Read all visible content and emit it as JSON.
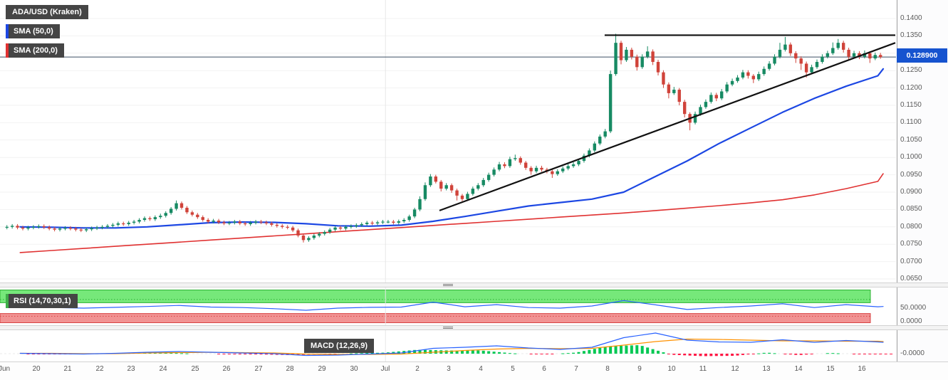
{
  "colors": {
    "up_candle": "#178a63",
    "down_candle": "#d0433a",
    "sma50": "#1c47e3",
    "sma200": "#e03131",
    "trendline": "#111111",
    "last_price_line": "#3c4f63",
    "rsi_line": "#2962ff",
    "rsi_marker": "#3fae49",
    "rsi_overbought_fill": "#76e87a",
    "rsi_overbought_edge": "#2db234",
    "rsi_oversold_fill": "#f19393",
    "rsi_oversold_edge": "#d84343",
    "macd_line": "#2962ff",
    "macd_signal": "#ff9100",
    "hist_up": "#00c853",
    "hist_down": "#ff1744",
    "badge_bg": "#1653cf"
  },
  "chart_data": {
    "type": "candlestick",
    "symbol_label": "ADA/USD (Kraken)",
    "last_price": 0.1289,
    "last_price_label": "0.128900",
    "ylim": [
      0.065,
      0.14
    ],
    "price_tick_labels": [
      "0.1400",
      "0.1350",
      "0.1300",
      "0.1250",
      "0.1200",
      "0.1150",
      "0.1100",
      "0.1050",
      "0.1000",
      "0.0950",
      "0.0900",
      "0.0850",
      "0.0800",
      "0.0750",
      "0.0700",
      "0.0650"
    ],
    "x_tick_labels": [
      "Jun",
      "20",
      "21",
      "22",
      "23",
      "24",
      "25",
      "26",
      "27",
      "28",
      "29",
      "30",
      "Jul",
      "2",
      "3",
      "4",
      "5",
      "6",
      "7",
      "8",
      "9",
      "10",
      "11",
      "12",
      "13",
      "14",
      "15",
      "16"
    ],
    "candles_per_day": 6,
    "candles_ohlc": [
      [
        0.0798,
        0.0805,
        0.0793,
        0.08
      ],
      [
        0.08,
        0.0808,
        0.0795,
        0.0803
      ],
      [
        0.0803,
        0.0808,
        0.0793,
        0.0798
      ],
      [
        0.0798,
        0.0803,
        0.079,
        0.0795
      ],
      [
        0.0795,
        0.0803,
        0.079,
        0.0798
      ],
      [
        0.0798,
        0.0805,
        0.0793,
        0.08
      ],
      [
        0.08,
        0.0807,
        0.0795,
        0.0802
      ],
      [
        0.0802,
        0.0807,
        0.0794,
        0.0799
      ],
      [
        0.0799,
        0.0804,
        0.079,
        0.0795
      ],
      [
        0.0795,
        0.08,
        0.0787,
        0.0792
      ],
      [
        0.0792,
        0.08,
        0.0787,
        0.0795
      ],
      [
        0.0795,
        0.0802,
        0.079,
        0.0797
      ],
      [
        0.0797,
        0.0802,
        0.079,
        0.0795
      ],
      [
        0.0795,
        0.08,
        0.0787,
        0.0792
      ],
      [
        0.0792,
        0.0797,
        0.0785,
        0.079
      ],
      [
        0.079,
        0.0798,
        0.0785,
        0.0793
      ],
      [
        0.0793,
        0.0801,
        0.0788,
        0.0796
      ],
      [
        0.0796,
        0.0803,
        0.0791,
        0.0798
      ],
      [
        0.0798,
        0.0805,
        0.0793,
        0.08
      ],
      [
        0.08,
        0.0808,
        0.0795,
        0.0803
      ],
      [
        0.0803,
        0.0811,
        0.0798,
        0.0806
      ],
      [
        0.0806,
        0.0815,
        0.0801,
        0.081
      ],
      [
        0.081,
        0.0815,
        0.0803,
        0.0808
      ],
      [
        0.0808,
        0.0817,
        0.0803,
        0.0812
      ],
      [
        0.0812,
        0.082,
        0.0807,
        0.0815
      ],
      [
        0.0815,
        0.0825,
        0.081,
        0.082
      ],
      [
        0.082,
        0.083,
        0.0815,
        0.0825
      ],
      [
        0.0825,
        0.083,
        0.0817,
        0.0822
      ],
      [
        0.0822,
        0.0833,
        0.0817,
        0.0828
      ],
      [
        0.0828,
        0.0838,
        0.0823,
        0.0832
      ],
      [
        0.0832,
        0.0845,
        0.0827,
        0.084
      ],
      [
        0.084,
        0.0857,
        0.0835,
        0.0852
      ],
      [
        0.0852,
        0.0876,
        0.0847,
        0.0868
      ],
      [
        0.0868,
        0.0873,
        0.085,
        0.0855
      ],
      [
        0.0855,
        0.086,
        0.0837,
        0.0842
      ],
      [
        0.0842,
        0.0847,
        0.083,
        0.0835
      ],
      [
        0.0835,
        0.084,
        0.0823,
        0.0828
      ],
      [
        0.0828,
        0.0833,
        0.0815,
        0.082
      ],
      [
        0.082,
        0.0825,
        0.081,
        0.0815
      ],
      [
        0.0815,
        0.0823,
        0.081,
        0.0818
      ],
      [
        0.0818,
        0.0823,
        0.0808,
        0.0813
      ],
      [
        0.0813,
        0.0818,
        0.0805,
        0.081
      ],
      [
        0.081,
        0.0817,
        0.0805,
        0.0812
      ],
      [
        0.0812,
        0.082,
        0.0807,
        0.0815
      ],
      [
        0.0815,
        0.082,
        0.0805,
        0.081
      ],
      [
        0.081,
        0.0815,
        0.0803,
        0.0808
      ],
      [
        0.0808,
        0.0817,
        0.0803,
        0.0812
      ],
      [
        0.0812,
        0.082,
        0.0807,
        0.0815
      ],
      [
        0.0815,
        0.082,
        0.0808,
        0.0813
      ],
      [
        0.0813,
        0.0818,
        0.0805,
        0.081
      ],
      [
        0.081,
        0.0815,
        0.0801,
        0.0806
      ],
      [
        0.0806,
        0.0811,
        0.0798,
        0.0803
      ],
      [
        0.0803,
        0.0808,
        0.0795,
        0.08
      ],
      [
        0.08,
        0.0805,
        0.0793,
        0.0798
      ],
      [
        0.0798,
        0.0803,
        0.0785,
        0.079
      ],
      [
        0.079,
        0.0795,
        0.077,
        0.0775
      ],
      [
        0.0775,
        0.078,
        0.0755,
        0.0762
      ],
      [
        0.0762,
        0.0773,
        0.0757,
        0.0768
      ],
      [
        0.0768,
        0.078,
        0.0763,
        0.0775
      ],
      [
        0.0775,
        0.0785,
        0.077,
        0.078
      ],
      [
        0.078,
        0.079,
        0.0775,
        0.0785
      ],
      [
        0.0785,
        0.0797,
        0.078,
        0.0792
      ],
      [
        0.0792,
        0.0803,
        0.0787,
        0.0798
      ],
      [
        0.0798,
        0.0803,
        0.079,
        0.0795
      ],
      [
        0.0795,
        0.0805,
        0.079,
        0.08
      ],
      [
        0.08,
        0.0807,
        0.0795,
        0.0802
      ],
      [
        0.0802,
        0.081,
        0.0797,
        0.0805
      ],
      [
        0.0805,
        0.0813,
        0.08,
        0.0808
      ],
      [
        0.0808,
        0.0817,
        0.0803,
        0.0812
      ],
      [
        0.0812,
        0.0817,
        0.0805,
        0.081
      ],
      [
        0.081,
        0.0818,
        0.0805,
        0.0813
      ],
      [
        0.0813,
        0.082,
        0.0808,
        0.0815
      ],
      [
        0.0815,
        0.082,
        0.081,
        0.0815
      ],
      [
        0.0815,
        0.082,
        0.0807,
        0.0812
      ],
      [
        0.0812,
        0.0821,
        0.0807,
        0.0816
      ],
      [
        0.0816,
        0.0825,
        0.0811,
        0.082
      ],
      [
        0.082,
        0.0835,
        0.0815,
        0.083
      ],
      [
        0.083,
        0.0855,
        0.0825,
        0.085
      ],
      [
        0.085,
        0.0888,
        0.0845,
        0.088
      ],
      [
        0.088,
        0.0928,
        0.0875,
        0.092
      ],
      [
        0.092,
        0.0952,
        0.0915,
        0.0945
      ],
      [
        0.0945,
        0.095,
        0.0925,
        0.093
      ],
      [
        0.093,
        0.0935,
        0.0902,
        0.091
      ],
      [
        0.091,
        0.0926,
        0.0905,
        0.092
      ],
      [
        0.092,
        0.0925,
        0.0898,
        0.0905
      ],
      [
        0.0905,
        0.091,
        0.0876,
        0.089
      ],
      [
        0.089,
        0.0895,
        0.0874,
        0.088
      ],
      [
        0.088,
        0.0901,
        0.0875,
        0.0895
      ],
      [
        0.0895,
        0.0916,
        0.089,
        0.091
      ],
      [
        0.091,
        0.0926,
        0.0905,
        0.092
      ],
      [
        0.092,
        0.0941,
        0.0915,
        0.0935
      ],
      [
        0.0935,
        0.0956,
        0.093,
        0.095
      ],
      [
        0.095,
        0.0971,
        0.0945,
        0.0965
      ],
      [
        0.0965,
        0.0987,
        0.096,
        0.098
      ],
      [
        0.098,
        0.0986,
        0.0969,
        0.0975
      ],
      [
        0.0975,
        0.1002,
        0.097,
        0.0995
      ],
      [
        0.0995,
        0.1008,
        0.099,
        0.0998
      ],
      [
        0.0998,
        0.1003,
        0.0979,
        0.0985
      ],
      [
        0.0985,
        0.099,
        0.0964,
        0.097
      ],
      [
        0.097,
        0.0975,
        0.095,
        0.096
      ],
      [
        0.096,
        0.0976,
        0.0955,
        0.097
      ],
      [
        0.097,
        0.0976,
        0.0959,
        0.0965
      ],
      [
        0.0965,
        0.097,
        0.0954,
        0.096
      ],
      [
        0.096,
        0.0965,
        0.0941,
        0.0952
      ],
      [
        0.0952,
        0.0966,
        0.0947,
        0.096
      ],
      [
        0.096,
        0.0974,
        0.0955,
        0.0968
      ],
      [
        0.0968,
        0.0981,
        0.0963,
        0.0975
      ],
      [
        0.0975,
        0.0986,
        0.097,
        0.098
      ],
      [
        0.098,
        0.0996,
        0.0975,
        0.099
      ],
      [
        0.099,
        0.1011,
        0.0985,
        0.1005
      ],
      [
        0.1005,
        0.1026,
        0.1,
        0.102
      ],
      [
        0.102,
        0.1046,
        0.1015,
        0.104
      ],
      [
        0.104,
        0.1066,
        0.1035,
        0.106
      ],
      [
        0.106,
        0.1082,
        0.1055,
        0.1075
      ],
      [
        0.1075,
        0.125,
        0.107,
        0.124
      ],
      [
        0.124,
        0.1356,
        0.1235,
        0.133
      ],
      [
        0.133,
        0.1336,
        0.1268,
        0.128
      ],
      [
        0.128,
        0.1318,
        0.1275,
        0.131
      ],
      [
        0.131,
        0.1316,
        0.1282,
        0.129
      ],
      [
        0.129,
        0.1296,
        0.125,
        0.126
      ],
      [
        0.126,
        0.1297,
        0.1255,
        0.129
      ],
      [
        0.129,
        0.132,
        0.1285,
        0.1305
      ],
      [
        0.1305,
        0.1311,
        0.1266,
        0.1275
      ],
      [
        0.1275,
        0.1281,
        0.1236,
        0.1245
      ],
      [
        0.1245,
        0.1251,
        0.12,
        0.121
      ],
      [
        0.121,
        0.1216,
        0.117,
        0.1185
      ],
      [
        0.1185,
        0.1203,
        0.118,
        0.1195
      ],
      [
        0.1195,
        0.12,
        0.115,
        0.116
      ],
      [
        0.116,
        0.1166,
        0.1115,
        0.1125
      ],
      [
        0.1125,
        0.113,
        0.1078,
        0.11
      ],
      [
        0.11,
        0.1132,
        0.1095,
        0.1125
      ],
      [
        0.1125,
        0.1152,
        0.112,
        0.1145
      ],
      [
        0.1145,
        0.1167,
        0.114,
        0.116
      ],
      [
        0.116,
        0.1187,
        0.1155,
        0.118
      ],
      [
        0.118,
        0.1186,
        0.1162,
        0.117
      ],
      [
        0.117,
        0.1197,
        0.1165,
        0.119
      ],
      [
        0.119,
        0.1217,
        0.1185,
        0.121
      ],
      [
        0.121,
        0.1227,
        0.1205,
        0.122
      ],
      [
        0.122,
        0.1237,
        0.1215,
        0.123
      ],
      [
        0.123,
        0.1252,
        0.1225,
        0.1245
      ],
      [
        0.1245,
        0.1251,
        0.1227,
        0.1235
      ],
      [
        0.1235,
        0.124,
        0.1214,
        0.1225
      ],
      [
        0.1225,
        0.1247,
        0.122,
        0.124
      ],
      [
        0.124,
        0.1262,
        0.1235,
        0.1255
      ],
      [
        0.1255,
        0.1277,
        0.125,
        0.127
      ],
      [
        0.127,
        0.1297,
        0.1265,
        0.129
      ],
      [
        0.129,
        0.133,
        0.1285,
        0.131
      ],
      [
        0.131,
        0.1347,
        0.1305,
        0.1325
      ],
      [
        0.1325,
        0.1331,
        0.1292,
        0.13
      ],
      [
        0.13,
        0.1306,
        0.1272,
        0.1285
      ],
      [
        0.1285,
        0.1291,
        0.1252,
        0.127
      ],
      [
        0.127,
        0.1276,
        0.123,
        0.1245
      ],
      [
        0.1245,
        0.1267,
        0.124,
        0.126
      ],
      [
        0.126,
        0.1282,
        0.1255,
        0.1275
      ],
      [
        0.1275,
        0.1297,
        0.127,
        0.129
      ],
      [
        0.129,
        0.1307,
        0.1285,
        0.13
      ],
      [
        0.13,
        0.1331,
        0.1295,
        0.1315
      ],
      [
        0.1315,
        0.1341,
        0.131,
        0.133
      ],
      [
        0.133,
        0.1336,
        0.1302,
        0.131
      ],
      [
        0.131,
        0.1316,
        0.128,
        0.129
      ],
      [
        0.129,
        0.1307,
        0.1285,
        0.13
      ],
      [
        0.13,
        0.1306,
        0.1283,
        0.129
      ],
      [
        0.129,
        0.1308,
        0.1285,
        0.13
      ],
      [
        0.13,
        0.1306,
        0.1272,
        0.1285
      ],
      [
        0.1285,
        0.1302,
        0.128,
        0.1295
      ],
      [
        0.1295,
        0.1301,
        0.1284,
        0.1289
      ]
    ],
    "sma50": {
      "label": "SMA (50,0)",
      "daily_values": [
        0.08,
        0.0799,
        0.0797,
        0.0797,
        0.08,
        0.0806,
        0.0812,
        0.0814,
        0.0813,
        0.0809,
        0.0803,
        0.0802,
        0.0805,
        0.0816,
        0.083,
        0.0845,
        0.086,
        0.087,
        0.088,
        0.09,
        0.0945,
        0.099,
        0.104,
        0.1085,
        0.113,
        0.117,
        0.1205,
        0.1235,
        0.1255
      ]
    },
    "sma200": {
      "label": "SMA (200,0)",
      "daily_values": [
        0.0726,
        0.0732,
        0.0738,
        0.0744,
        0.075,
        0.0756,
        0.0762,
        0.0768,
        0.0774,
        0.078,
        0.0786,
        0.0792,
        0.0798,
        0.0804,
        0.081,
        0.0816,
        0.0822,
        0.0828,
        0.0834,
        0.084,
        0.0847,
        0.0854,
        0.0861,
        0.0869,
        0.0878,
        0.0892,
        0.091,
        0.0931,
        0.0953
      ]
    },
    "trendlines": [
      {
        "name": "horizontal-resistance",
        "from_day": 18.9,
        "to_day": 28.2,
        "price_start": 0.1352,
        "price_end": 0.1352
      },
      {
        "name": "ascending-support",
        "from_day": 13.7,
        "to_day": 28.2,
        "price_start": 0.0847,
        "price_end": 0.133
      }
    ],
    "rsi": {
      "label": "RSI (14,70,30,1)",
      "overbought": 70,
      "oversold": 30,
      "axis_tick_labels": [
        "50.0000",
        "0.0000"
      ],
      "daily_values": [
        55,
        52,
        50,
        53,
        56,
        60,
        54,
        52,
        48,
        42,
        50,
        53,
        54,
        72,
        55,
        63,
        52,
        50,
        58,
        78,
        62,
        45,
        52,
        58,
        66,
        52,
        63,
        55,
        56
      ]
    },
    "macd": {
      "label": "MACD (12,26,9)",
      "axis_tick_labels": [
        "-0.0000"
      ],
      "macd_daily": [
        0.0001,
        0.0,
        -0.0001,
        0.0001,
        0.0004,
        0.0006,
        0.0004,
        0.0002,
        0.0,
        -0.0005,
        -0.0004,
        -0.0001,
        0.0002,
        0.0015,
        0.0018,
        0.0022,
        0.0016,
        0.0012,
        0.0018,
        0.0045,
        0.0058,
        0.0038,
        0.0033,
        0.0032,
        0.0039,
        0.0032,
        0.0037,
        0.0033,
        0.0032
      ],
      "signal_daily": [
        0.0001,
        0.0001,
        0.0,
        0.0,
        0.0002,
        0.0003,
        0.0004,
        0.0003,
        0.0002,
        -0.0001,
        -0.0002,
        -0.0002,
        -0.0001,
        0.0004,
        0.0009,
        0.0013,
        0.0015,
        0.0014,
        0.0015,
        0.0024,
        0.0034,
        0.0041,
        0.004,
        0.0038,
        0.0036,
        0.0036,
        0.0035,
        0.0035,
        0.0034
      ]
    }
  }
}
